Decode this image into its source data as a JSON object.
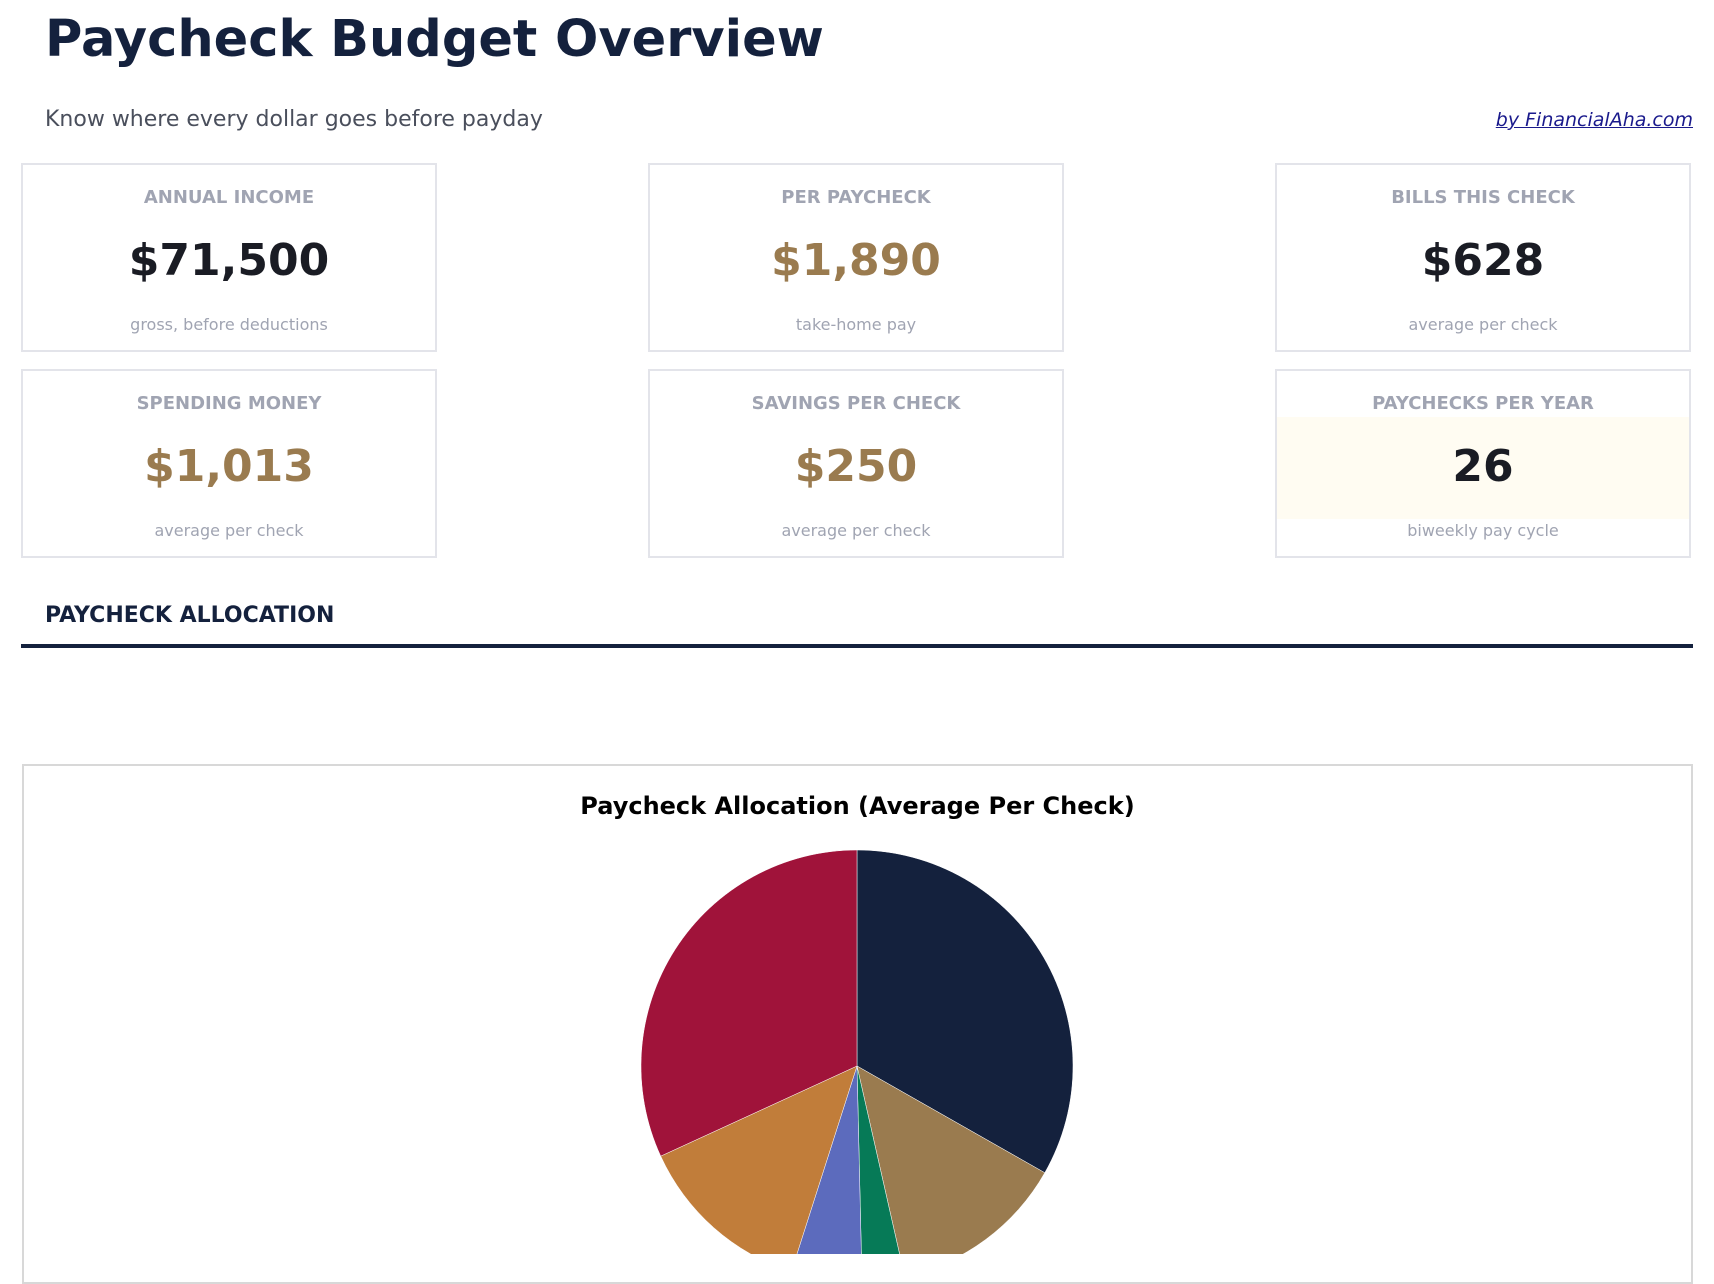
{
  "header": {
    "title": "Paycheck Budget Overview",
    "subtitle": "Know where every dollar goes before payday",
    "credit_link": "by FinancialAha.com"
  },
  "cards": [
    {
      "label": "ANNUAL INCOME",
      "value": "$71,500",
      "sub": "gross, before deductions",
      "accent": "#1a1c24"
    },
    {
      "label": "PER PAYCHECK",
      "value": "$1,890",
      "sub": "take-home pay",
      "accent": "#9a7b4f"
    },
    {
      "label": "BILLS THIS CHECK",
      "value": "$628",
      "sub": "average per check",
      "accent": "#1a1c24"
    },
    {
      "label": "SPENDING MONEY",
      "value": "$1,013",
      "sub": "average per check",
      "accent": "#9a7b4f"
    },
    {
      "label": "SAVINGS PER CHECK",
      "value": "$250",
      "sub": "average per check",
      "accent": "#9a7b4f"
    },
    {
      "label": "PAYCHECKS PER YEAR",
      "value": "26",
      "sub": "biweekly pay cycle",
      "accent": "#1a1c24"
    }
  ],
  "section": {
    "title": "PAYCHECK ALLOCATION"
  },
  "chart_data": {
    "type": "pie",
    "title": "Paycheck Allocation (Average Per Check)",
    "start_angle": "top, clockwise",
    "values": [
      628,
      250,
      60,
      100,
      250,
      602
    ],
    "colors": [
      "#14213d",
      "#9a7b4f",
      "#067a57",
      "#5c6bbd",
      "#c17d3a",
      "#a0133a"
    ]
  }
}
